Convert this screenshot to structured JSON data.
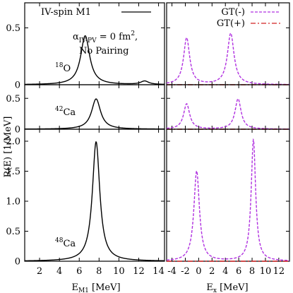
{
  "chart_data": {
    "type": "line",
    "ylabel": "R(E) [1/MeV]",
    "grid": false,
    "columns": [
      {
        "id": "left",
        "xlabel": {
          "main": "E",
          "sub": "M1",
          "unit": " [MeV]"
        },
        "xlim": [
          0.5,
          14.6
        ],
        "xticks": [
          2,
          4,
          6,
          8,
          10,
          12,
          14
        ],
        "xtick_labels": [
          "2",
          "4",
          "6",
          "8",
          "10",
          "12",
          "14"
        ],
        "legend": [
          {
            "label": "IV-spin M1",
            "color": "#000000",
            "dash": "solid"
          }
        ],
        "annotation": {
          "alpha_symbol": "α",
          "alpha_sub": "IV-PV",
          "alpha_value": " = 0 fm",
          "alpha_exp": "2",
          "alpha_end": ",",
          "line2": "No Pairing"
        }
      },
      {
        "id": "right",
        "xlabel": {
          "main": "E",
          "sub": "x",
          "unit": " [MeV]"
        },
        "xlim": [
          -4.8,
          13.6
        ],
        "xticks": [
          -4,
          -2,
          0,
          2,
          4,
          6,
          8,
          10,
          12
        ],
        "xtick_labels": [
          "-4",
          "-2",
          "0",
          "2",
          "4",
          "6",
          "8",
          "10",
          "12"
        ],
        "legend": [
          {
            "label": "GT(-)",
            "color": "#b030e0",
            "dash": "dashed"
          },
          {
            "label": "GT(+)",
            "color": "#d02020",
            "dash": "dashdot"
          }
        ]
      }
    ],
    "rows": [
      {
        "nucleus_mass": "18",
        "nucleus_symbol": "O",
        "ylim": [
          0,
          0.72
        ],
        "yticks": [
          0,
          0.5
        ],
        "ytick_labels": [
          "0",
          "0.5"
        ],
        "series": [
          {
            "name": "IV-spin M1",
            "column": "left",
            "peaks": [
              [
                6.6,
                0.43,
                0.55
              ],
              [
                12.6,
                0.03,
                0.5
              ]
            ],
            "baseline": 0
          },
          {
            "name": "GT(-)",
            "column": "right",
            "peaks": [
              [
                -1.8,
                0.41,
                0.55
              ],
              [
                4.8,
                0.45,
                0.6
              ]
            ],
            "baseline": 0
          },
          {
            "name": "GT(+)",
            "column": "right",
            "peaks": [],
            "baseline": 0
          }
        ]
      },
      {
        "nucleus_mass": "42",
        "nucleus_symbol": "Ca",
        "ylim": [
          0,
          0.72
        ],
        "yticks": [
          0,
          0.5
        ],
        "ytick_labels": [
          "0",
          "0.5"
        ],
        "series": [
          {
            "name": "IV-spin M1",
            "column": "left",
            "peaks": [
              [
                7.7,
                0.49,
                0.55
              ]
            ],
            "baseline": 0
          },
          {
            "name": "GT(-)",
            "column": "right",
            "peaks": [
              [
                -1.8,
                0.41,
                0.55
              ],
              [
                5.9,
                0.49,
                0.55
              ]
            ],
            "baseline": 0
          },
          {
            "name": "GT(+)",
            "column": "right",
            "peaks": [],
            "baseline": 0
          }
        ]
      },
      {
        "nucleus_mass": "48",
        "nucleus_symbol": "Ca",
        "ylim": [
          0,
          2.2
        ],
        "yticks": [
          0,
          0.5,
          1.0,
          1.5,
          2.0
        ],
        "ytick_labels": [
          "0",
          "0.5",
          "1.0",
          "1.5",
          "2.0"
        ],
        "series": [
          {
            "name": "IV-spin M1",
            "column": "left",
            "peaks": [
              [
                7.7,
                1.99,
                0.45
              ]
            ],
            "baseline": 0
          },
          {
            "name": "GT(-)",
            "column": "right",
            "peaks": [
              [
                -0.3,
                1.5,
                0.5
              ],
              [
                8.2,
                2.02,
                0.4
              ]
            ],
            "baseline": 0
          },
          {
            "name": "GT(+)",
            "column": "right",
            "peaks": [],
            "baseline": 0
          }
        ]
      }
    ]
  }
}
